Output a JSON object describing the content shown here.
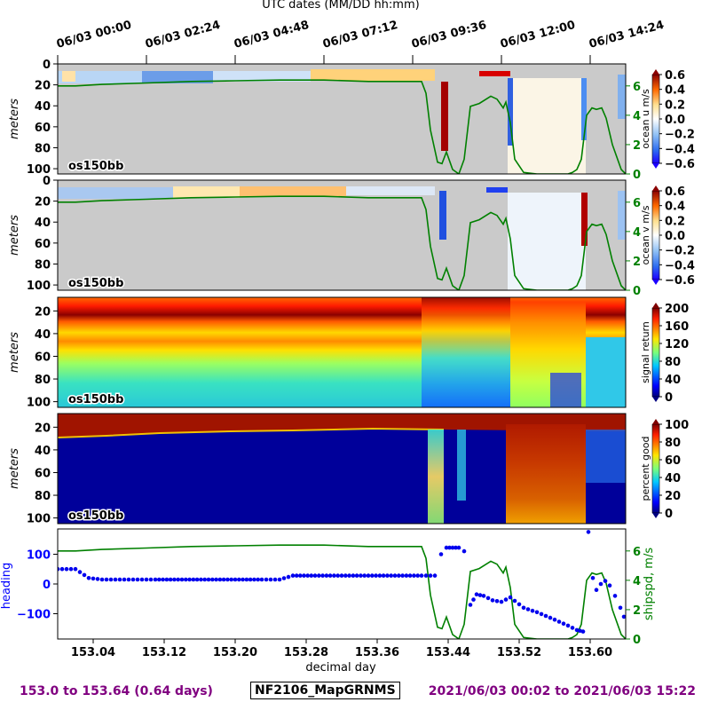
{
  "figure": {
    "top_axis_title": "UTC dates (MM/DD hh:mm)",
    "date_ticks": [
      "06/03 00:00",
      "06/03 02:24",
      "06/03 04:48",
      "06/03 07:12",
      "06/03 09:36",
      "06/03 12:00",
      "06/03 14:24"
    ],
    "footer_left": "153.0 to 153.64 (0.64 days)",
    "footer_center": "NF2106_MapGRNMS",
    "footer_right": "2021/06/03 00:02 to 2021/06/03 15:22",
    "xlabel": "decimal day",
    "instrument_label": "os150bb"
  },
  "chart_data": [
    {
      "type": "heatmap",
      "ylabel": "meters",
      "colorbar_label": "ocean u m/s",
      "colorbar_ticks": [
        "0.6",
        "0.4",
        "0.2",
        "0.0",
        "−0.2",
        "−0.4",
        "−0.6"
      ],
      "clim": [
        -0.6,
        0.6
      ],
      "y_ticks": [
        "0",
        "20",
        "40",
        "60",
        "80",
        "100"
      ],
      "ylim": [
        105,
        0
      ],
      "right_axis_ticks": [
        "6",
        "4",
        "2",
        "0"
      ],
      "overlay": "ship speed (m/s)"
    },
    {
      "type": "heatmap",
      "ylabel": "meters",
      "colorbar_label": "ocean v m/s",
      "colorbar_ticks": [
        "0.6",
        "0.4",
        "0.2",
        "0.0",
        "−0.2",
        "−0.4",
        "−0.6"
      ],
      "clim": [
        -0.6,
        0.6
      ],
      "y_ticks": [
        "0",
        "20",
        "40",
        "60",
        "80",
        "100"
      ],
      "ylim": [
        105,
        0
      ],
      "right_axis_ticks": [
        "6",
        "4",
        "2",
        "0"
      ],
      "overlay": "ship speed (m/s)"
    },
    {
      "type": "heatmap",
      "ylabel": "meters",
      "colorbar_label": "signal return",
      "colorbar_ticks": [
        "200",
        "160",
        "120",
        "80",
        "40",
        "0"
      ],
      "clim": [
        0,
        200
      ],
      "y_ticks": [
        "20",
        "40",
        "60",
        "80",
        "100"
      ],
      "ylim": [
        105,
        8
      ]
    },
    {
      "type": "heatmap",
      "ylabel": "meters",
      "colorbar_label": "percent good",
      "colorbar_ticks": [
        "100",
        "80",
        "60",
        "40",
        "20",
        "0"
      ],
      "clim": [
        0,
        100
      ],
      "y_ticks": [
        "20",
        "40",
        "60",
        "80",
        "100"
      ],
      "ylim": [
        105,
        8
      ]
    },
    {
      "type": "scatter",
      "ylabel": "heading",
      "right_ylabel": "shipspd, m/s",
      "x_ticks": [
        "153.04",
        "153.12",
        "153.20",
        "153.28",
        "153.36",
        "153.44",
        "153.52",
        "153.60"
      ],
      "xlim": [
        153.0,
        153.64
      ],
      "y_ticks": [
        "100",
        "0",
        "−100"
      ],
      "ylim": [
        -185,
        185
      ],
      "right_ticks": [
        "6",
        "4",
        "2",
        "0"
      ],
      "right_ylim": [
        0,
        7.5
      ],
      "series": [
        {
          "name": "heading",
          "x": [
            153.0,
            153.02,
            153.025,
            153.035,
            153.05,
            153.07,
            153.09,
            153.11,
            153.14,
            153.17,
            153.2,
            153.23,
            153.25,
            153.265,
            153.29,
            153.32,
            153.35,
            153.38,
            153.41,
            153.425,
            153.432,
            153.438,
            153.445,
            153.452,
            153.458,
            153.465,
            153.472,
            153.48,
            153.49,
            153.5,
            153.51,
            153.525,
            153.54,
            153.56,
            153.575,
            153.585,
            153.592,
            153.598,
            153.603,
            153.607,
            153.612,
            153.617,
            153.622,
            153.628,
            153.634,
            153.638
          ],
          "y": [
            50,
            50,
            40,
            20,
            15,
            15,
            15,
            15,
            15,
            15,
            15,
            15,
            15,
            28,
            28,
            28,
            28,
            28,
            28,
            28,
            100,
            122,
            122,
            122,
            110,
            -70,
            -35,
            -40,
            -55,
            -60,
            -45,
            -80,
            -95,
            -120,
            -140,
            -155,
            -160,
            175,
            20,
            -20,
            0,
            10,
            -5,
            -40,
            -80,
            -110
          ]
        },
        {
          "name": "ship speed",
          "x": [
            153.0,
            153.02,
            153.05,
            153.1,
            153.15,
            153.2,
            153.25,
            153.3,
            153.35,
            153.4,
            153.41,
            153.415,
            153.42,
            153.428,
            153.433,
            153.438,
            153.445,
            153.452,
            153.458,
            153.465,
            153.475,
            153.488,
            153.495,
            153.502,
            153.505,
            153.51,
            153.515,
            153.525,
            153.54,
            153.56,
            153.575,
            153.58,
            153.585,
            153.59,
            153.596,
            153.602,
            153.607,
            153.613,
            153.618,
            153.625,
            153.635,
            153.64
          ],
          "y": [
            6.0,
            6.0,
            6.1,
            6.2,
            6.3,
            6.35,
            6.4,
            6.4,
            6.3,
            6.3,
            6.3,
            5.5,
            3.0,
            0.8,
            0.7,
            1.5,
            0.3,
            0.0,
            1.0,
            4.6,
            4.8,
            5.3,
            5.1,
            4.5,
            4.9,
            3.5,
            1.0,
            0.1,
            0.0,
            0.0,
            0.0,
            0.1,
            0.3,
            1.0,
            4.0,
            4.5,
            4.4,
            4.5,
            3.8,
            2.0,
            0.3,
            0.0
          ]
        }
      ]
    }
  ]
}
